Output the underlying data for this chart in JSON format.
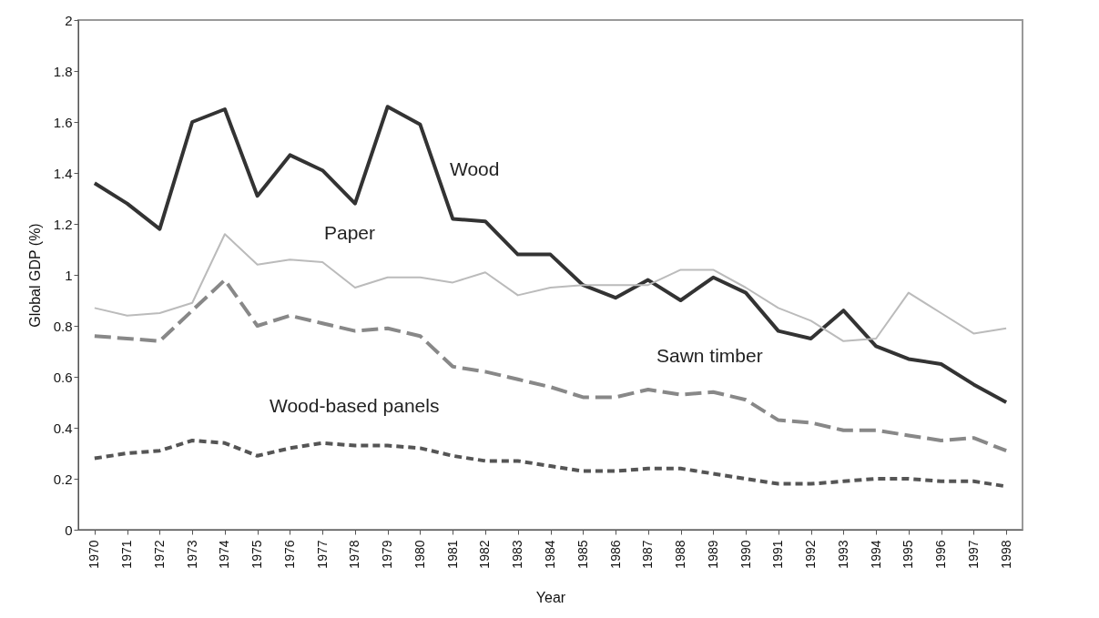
{
  "chart_data": {
    "type": "line",
    "xlabel": "Year",
    "ylabel": "Global GDP (%)",
    "categories": [
      "1970",
      "1971",
      "1972",
      "1973",
      "1974",
      "1975",
      "1976",
      "1977",
      "1978",
      "1979",
      "1980",
      "1981",
      "1982",
      "1983",
      "1984",
      "1985",
      "1986",
      "1987",
      "1988",
      "1989",
      "1990",
      "1991",
      "1992",
      "1993",
      "1994",
      "1995",
      "1996",
      "1997",
      "1998"
    ],
    "series": [
      {
        "name": "Wood",
        "color": "#333333",
        "line_style": "solid",
        "values": [
          1.36,
          1.28,
          1.18,
          1.6,
          1.65,
          1.31,
          1.47,
          1.41,
          1.28,
          1.66,
          1.59,
          1.22,
          1.21,
          1.08,
          1.08,
          0.96,
          0.91,
          0.98,
          0.9,
          0.99,
          0.93,
          0.78,
          0.75,
          0.86,
          0.72,
          0.67,
          0.65,
          0.57,
          0.5
        ]
      },
      {
        "name": "Paper",
        "color": "#bbbbbb",
        "line_style": "solid",
        "values": [
          0.87,
          0.84,
          0.85,
          0.89,
          1.16,
          1.04,
          1.06,
          1.05,
          0.95,
          0.99,
          0.99,
          0.97,
          1.01,
          0.92,
          0.95,
          0.96,
          0.96,
          0.96,
          1.02,
          1.02,
          0.95,
          0.87,
          0.82,
          0.74,
          0.75,
          0.93,
          0.85,
          0.77,
          0.79
        ]
      },
      {
        "name": "Sawn timber",
        "color": "#888888",
        "line_style": "dashed",
        "values": [
          0.76,
          0.75,
          0.74,
          0.86,
          0.98,
          0.8,
          0.84,
          0.81,
          0.78,
          0.79,
          0.76,
          0.64,
          0.62,
          0.59,
          0.56,
          0.52,
          0.52,
          0.55,
          0.53,
          0.54,
          0.51,
          0.43,
          0.42,
          0.39,
          0.39,
          0.37,
          0.35,
          0.36,
          0.31
        ]
      },
      {
        "name": "Wood-based panels",
        "color": "#555555",
        "line_style": "dotted",
        "values": [
          0.28,
          0.3,
          0.31,
          0.35,
          0.34,
          0.29,
          0.32,
          0.34,
          0.33,
          0.33,
          0.32,
          0.29,
          0.27,
          0.27,
          0.25,
          0.23,
          0.23,
          0.24,
          0.24,
          0.22,
          0.2,
          0.18,
          0.18,
          0.19,
          0.2,
          0.2,
          0.19,
          0.19,
          0.17
        ]
      }
    ],
    "ylim": [
      0,
      2
    ],
    "yticks": [
      0,
      0.2,
      0.4,
      0.6,
      0.8,
      1,
      1.2,
      1.4,
      1.6,
      1.8,
      2
    ],
    "grid": false,
    "legend": false,
    "marker": "none"
  }
}
